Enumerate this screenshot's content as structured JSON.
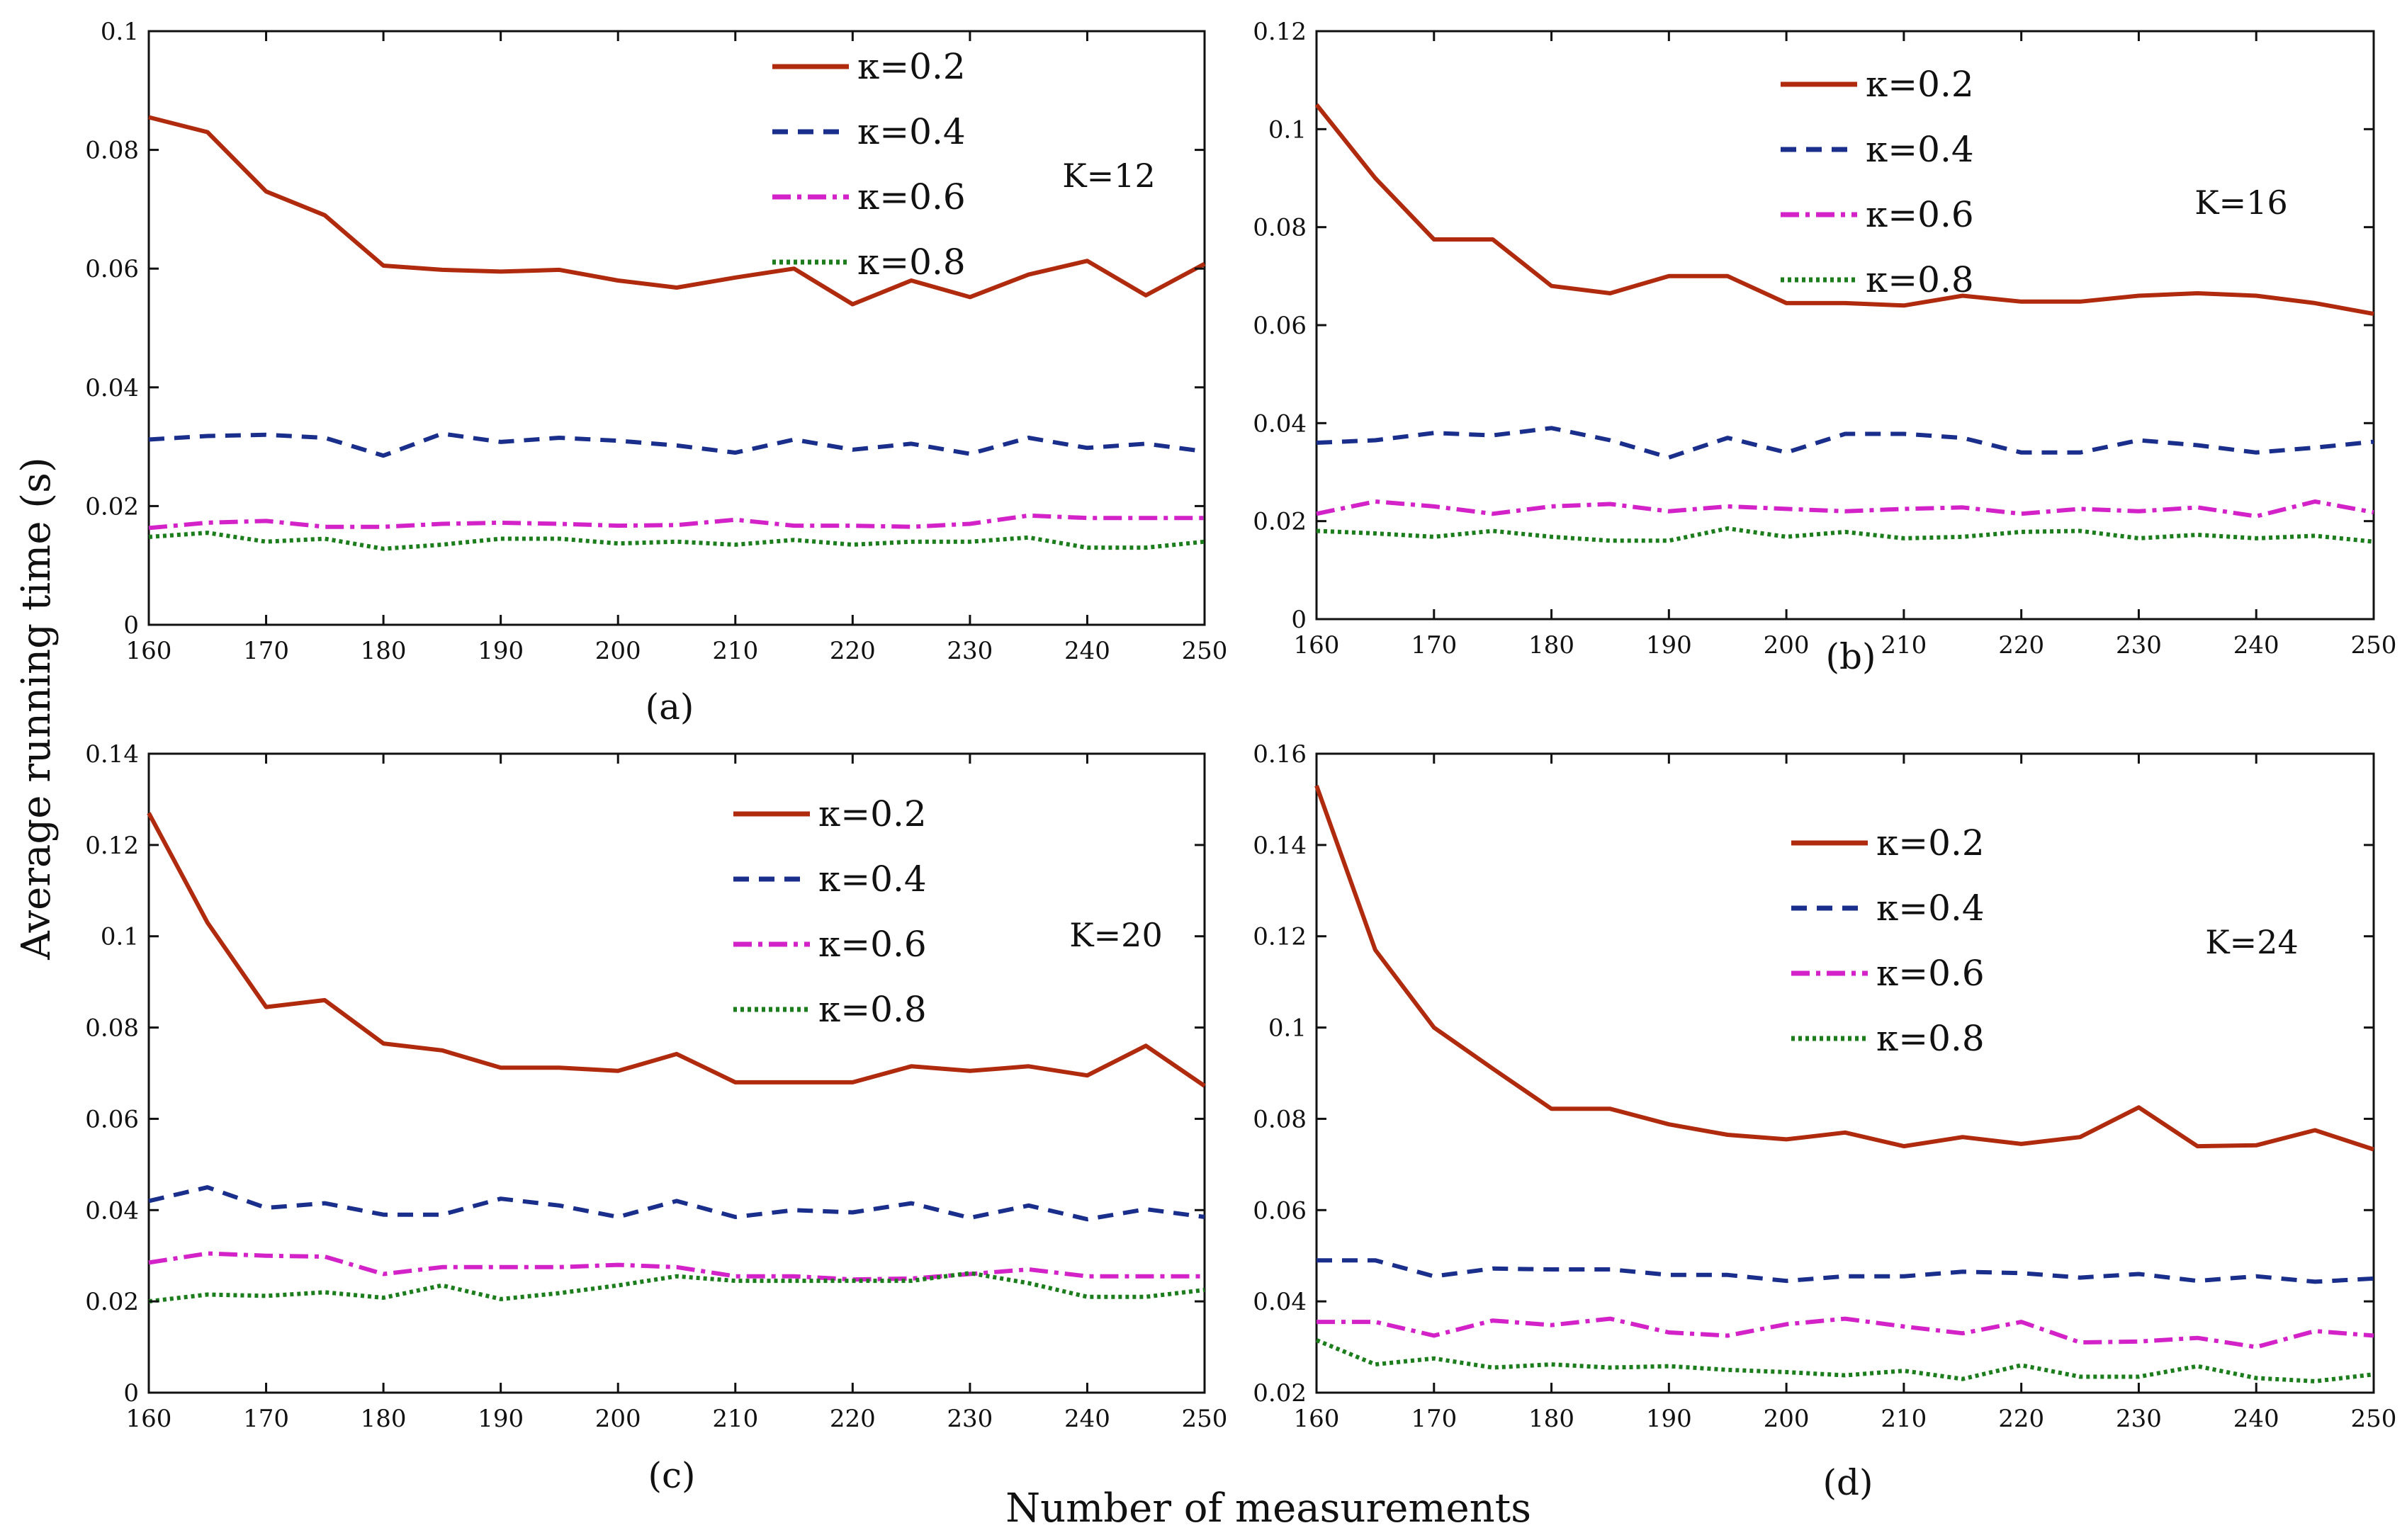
{
  "figure": {
    "ylabel": "Average running time (s)",
    "xlabel": "Number of measurements"
  },
  "series_styles": {
    "0.2": {
      "color": "#b02a0e",
      "dash": ""
    },
    "0.4": {
      "color": "#1a2f8c",
      "dash": "22,14"
    },
    "0.6": {
      "color": "#d322c8",
      "dash": "26,9,6,9"
    },
    "0.8": {
      "color": "#1c7d1c",
      "dash": "5,5"
    }
  },
  "chart_data": [
    {
      "type": "line",
      "panel_label": "(a)",
      "annotation": "K=12",
      "x": [
        160,
        165,
        170,
        175,
        180,
        185,
        190,
        195,
        200,
        205,
        210,
        215,
        220,
        225,
        230,
        235,
        240,
        245,
        250
      ],
      "xlim": [
        160,
        250
      ],
      "ylim": [
        0,
        0.1
      ],
      "xticks": [
        "160",
        "170",
        "180",
        "190",
        "200",
        "210",
        "220",
        "230",
        "240",
        "250"
      ],
      "yticks": [
        "0",
        "0.02",
        "0.04",
        "0.06",
        "0.08",
        "0.1"
      ],
      "series": [
        {
          "name": "0.2",
          "label": "κ=0.2",
          "values": [
            0.0855,
            0.083,
            0.073,
            0.069,
            0.0605,
            0.0598,
            0.0595,
            0.0598,
            0.058,
            0.0568,
            0.0585,
            0.06,
            0.054,
            0.058,
            0.0552,
            0.059,
            0.0613,
            0.0555,
            0.0608
          ]
        },
        {
          "name": "0.4",
          "label": "κ=0.4",
          "values": [
            0.0312,
            0.0318,
            0.032,
            0.0315,
            0.0285,
            0.0322,
            0.0308,
            0.0315,
            0.031,
            0.0302,
            0.029,
            0.0312,
            0.0295,
            0.0305,
            0.0288,
            0.0315,
            0.0298,
            0.0305,
            0.0292
          ]
        },
        {
          "name": "0.6",
          "label": "κ=0.6",
          "values": [
            0.0163,
            0.0172,
            0.0175,
            0.0165,
            0.0165,
            0.017,
            0.0172,
            0.017,
            0.0167,
            0.0168,
            0.0177,
            0.0167,
            0.0167,
            0.0165,
            0.017,
            0.0184,
            0.018,
            0.018,
            0.018
          ]
        },
        {
          "name": "0.8",
          "label": "κ=0.8",
          "values": [
            0.0148,
            0.0155,
            0.014,
            0.0145,
            0.0128,
            0.0135,
            0.0145,
            0.0145,
            0.0137,
            0.014,
            0.0135,
            0.0143,
            0.0135,
            0.014,
            0.014,
            0.0147,
            0.013,
            0.013,
            0.014
          ]
        }
      ]
    },
    {
      "type": "line",
      "panel_label": "(b)",
      "annotation": "K=16",
      "x": [
        160,
        165,
        170,
        175,
        180,
        185,
        190,
        195,
        200,
        205,
        210,
        215,
        220,
        225,
        230,
        235,
        240,
        245,
        250
      ],
      "xlim": [
        160,
        250
      ],
      "ylim": [
        0,
        0.12
      ],
      "xticks": [
        "160",
        "170",
        "180",
        "190",
        "200",
        "210",
        "220",
        "230",
        "240",
        "250"
      ],
      "yticks": [
        "0",
        "0.02",
        "0.04",
        "0.06",
        "0.08",
        "0.1",
        "0.12"
      ],
      "series": [
        {
          "name": "0.2",
          "label": "κ=0.2",
          "values": [
            0.105,
            0.09,
            0.0775,
            0.0775,
            0.068,
            0.0665,
            0.07,
            0.07,
            0.0645,
            0.0645,
            0.064,
            0.066,
            0.0648,
            0.0648,
            0.066,
            0.0665,
            0.066,
            0.0645,
            0.0623
          ]
        },
        {
          "name": "0.4",
          "label": "κ=0.4",
          "values": [
            0.036,
            0.0365,
            0.038,
            0.0375,
            0.039,
            0.0365,
            0.033,
            0.037,
            0.034,
            0.0378,
            0.0378,
            0.037,
            0.034,
            0.034,
            0.0365,
            0.0355,
            0.034,
            0.035,
            0.0362
          ]
        },
        {
          "name": "0.6",
          "label": "κ=0.6",
          "values": [
            0.0215,
            0.024,
            0.023,
            0.0215,
            0.023,
            0.0235,
            0.022,
            0.023,
            0.0225,
            0.022,
            0.0225,
            0.0228,
            0.0215,
            0.0225,
            0.022,
            0.0228,
            0.021,
            0.024,
            0.0218
          ]
        },
        {
          "name": "0.8",
          "label": "κ=0.8",
          "values": [
            0.018,
            0.0175,
            0.0168,
            0.018,
            0.0168,
            0.016,
            0.016,
            0.0185,
            0.0168,
            0.0178,
            0.0165,
            0.0168,
            0.0178,
            0.018,
            0.0165,
            0.0172,
            0.0165,
            0.017,
            0.0158
          ]
        }
      ]
    },
    {
      "type": "line",
      "panel_label": "(c)",
      "annotation": "K=20",
      "x": [
        160,
        165,
        170,
        175,
        180,
        185,
        190,
        195,
        200,
        205,
        210,
        215,
        220,
        225,
        230,
        235,
        240,
        245,
        250
      ],
      "xlim": [
        160,
        250
      ],
      "ylim": [
        0,
        0.14
      ],
      "xticks": [
        "160",
        "170",
        "180",
        "190",
        "200",
        "210",
        "220",
        "230",
        "240",
        "250"
      ],
      "yticks": [
        "0",
        "0.02",
        "0.04",
        "0.06",
        "0.08",
        "0.1",
        "0.12",
        "0.14"
      ],
      "series": [
        {
          "name": "0.2",
          "label": "κ=0.2",
          "values": [
            0.127,
            0.103,
            0.0845,
            0.086,
            0.0765,
            0.075,
            0.0712,
            0.0712,
            0.0705,
            0.0742,
            0.068,
            0.068,
            0.068,
            0.0715,
            0.0705,
            0.0715,
            0.0695,
            0.076,
            0.0672
          ]
        },
        {
          "name": "0.4",
          "label": "κ=0.4",
          "values": [
            0.042,
            0.045,
            0.0405,
            0.0415,
            0.039,
            0.039,
            0.0425,
            0.041,
            0.0385,
            0.042,
            0.0385,
            0.04,
            0.0395,
            0.0415,
            0.0383,
            0.041,
            0.038,
            0.0402,
            0.0385
          ]
        },
        {
          "name": "0.6",
          "label": "κ=0.6",
          "values": [
            0.0285,
            0.0305,
            0.03,
            0.0298,
            0.026,
            0.0275,
            0.0275,
            0.0275,
            0.028,
            0.0275,
            0.0255,
            0.0255,
            0.0248,
            0.025,
            0.026,
            0.027,
            0.0255,
            0.0255,
            0.0255
          ]
        },
        {
          "name": "0.8",
          "label": "κ=0.8",
          "values": [
            0.02,
            0.0215,
            0.0212,
            0.022,
            0.0208,
            0.0235,
            0.0205,
            0.0218,
            0.0235,
            0.0255,
            0.0245,
            0.0245,
            0.0245,
            0.0245,
            0.0262,
            0.024,
            0.021,
            0.021,
            0.0225
          ]
        }
      ]
    },
    {
      "type": "line",
      "panel_label": "(d)",
      "annotation": "K=24",
      "x": [
        160,
        165,
        170,
        175,
        180,
        185,
        190,
        195,
        200,
        205,
        210,
        215,
        220,
        225,
        230,
        235,
        240,
        245,
        250
      ],
      "xlim": [
        160,
        250
      ],
      "ylim": [
        0.02,
        0.16
      ],
      "xticks": [
        "160",
        "170",
        "180",
        "190",
        "200",
        "210",
        "220",
        "230",
        "240",
        "250"
      ],
      "yticks": [
        "0.02",
        "0.04",
        "0.06",
        "0.08",
        "0.1",
        "0.12",
        "0.14",
        "0.16"
      ],
      "series": [
        {
          "name": "0.2",
          "label": "κ=0.2",
          "values": [
            0.153,
            0.117,
            0.1,
            0.091,
            0.0822,
            0.0822,
            0.0788,
            0.0765,
            0.0755,
            0.077,
            0.074,
            0.076,
            0.0745,
            0.076,
            0.0825,
            0.074,
            0.0742,
            0.0775,
            0.0733
          ]
        },
        {
          "name": "0.4",
          "label": "κ=0.4",
          "values": [
            0.049,
            0.049,
            0.0455,
            0.0472,
            0.047,
            0.047,
            0.0458,
            0.0458,
            0.0445,
            0.0455,
            0.0455,
            0.0465,
            0.0462,
            0.0452,
            0.046,
            0.0445,
            0.0455,
            0.0443,
            0.045
          ]
        },
        {
          "name": "0.6",
          "label": "κ=0.6",
          "values": [
            0.0355,
            0.0355,
            0.0325,
            0.0358,
            0.0348,
            0.0362,
            0.0332,
            0.0325,
            0.035,
            0.0362,
            0.0345,
            0.033,
            0.0355,
            0.031,
            0.0312,
            0.032,
            0.03,
            0.0335,
            0.0325
          ]
        },
        {
          "name": "0.8",
          "label": "κ=0.8",
          "values": [
            0.0315,
            0.0262,
            0.0275,
            0.0255,
            0.0262,
            0.0255,
            0.0258,
            0.025,
            0.0245,
            0.0238,
            0.0248,
            0.023,
            0.026,
            0.0235,
            0.0235,
            0.0258,
            0.0232,
            0.0225,
            0.024
          ]
        }
      ]
    }
  ]
}
